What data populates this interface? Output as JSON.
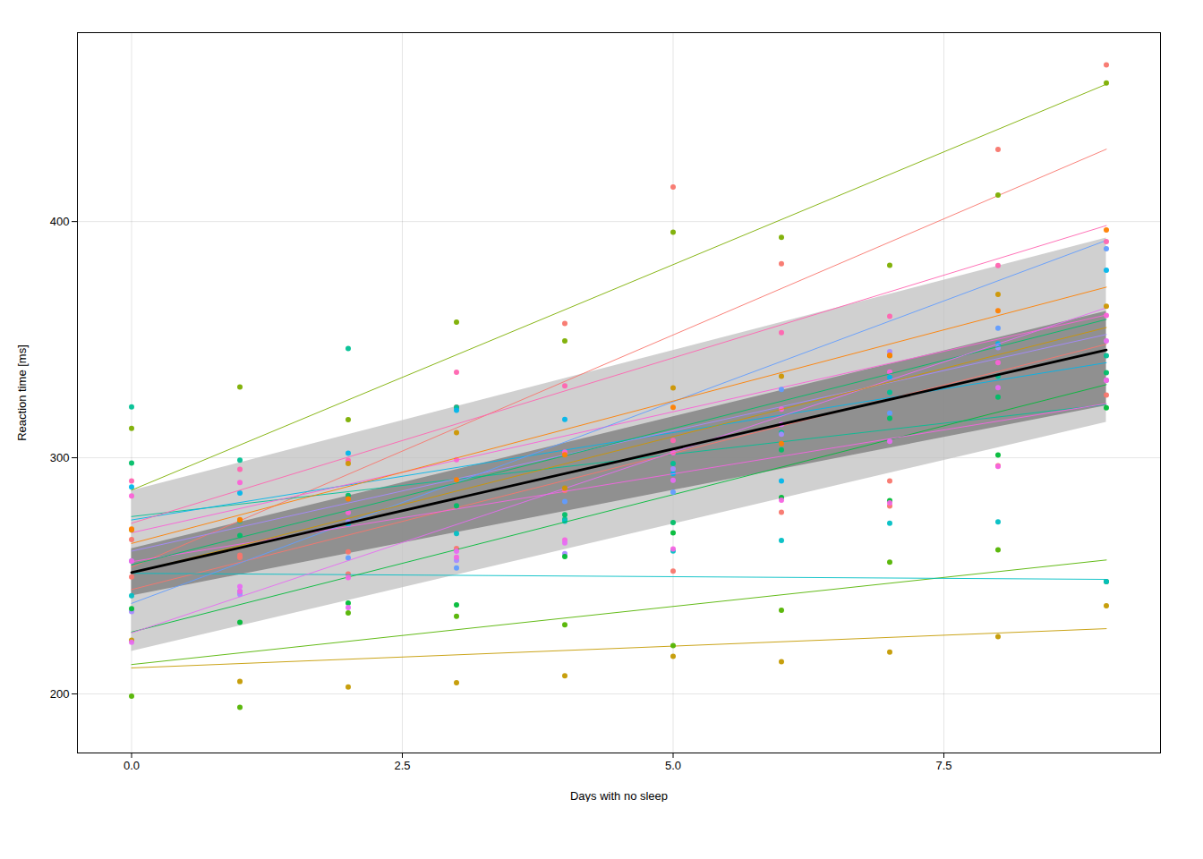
{
  "chart_data": {
    "type": "scatter",
    "xlabel": "Days with no sleep",
    "ylabel": "Reaction time [ms]",
    "xlim": [
      -0.5,
      9.5
    ],
    "ylim": [
      175,
      480
    ],
    "xticks": [
      {
        "value": 0,
        "label": "0.0"
      },
      2.5,
      {
        "value": 5,
        "label": "5.0"
      },
      7.5
    ],
    "yticks": [
      200,
      300,
      400
    ],
    "grid": true,
    "x": [
      0,
      1,
      2,
      3,
      4,
      5,
      6,
      7,
      8,
      9
    ],
    "series": [
      {
        "type": "area",
        "color": "#C0C0C0",
        "x": [
          0,
          9
        ],
        "lower": [
          218.0,
          315.0
        ],
        "upper": [
          286.0,
          393.0
        ]
      },
      {
        "type": "area",
        "color": "#808080",
        "x": [
          0,
          9
        ],
        "lower": [
          241.5,
          322.0
        ],
        "upper": [
          261.5,
          362.0
        ]
      },
      {
        "type": "line",
        "color": "#F8766D",
        "x": [
          0,
          9
        ],
        "values": [
          253.6637,
          430.6604
        ]
      },
      {
        "type": "scatter",
        "color": "#F8766D",
        "values": [
          249.56,
          258.7,
          250.8,
          321.44,
          356.85,
          414.69,
          382.2,
          290.15,
          430.59,
          466.35
        ]
      },
      {
        "type": "line",
        "color": "#C49A00",
        "x": [
          0,
          9
        ],
        "values": [
          211.0064,
          227.6321
        ]
      },
      {
        "type": "scatter",
        "color": "#C49A00",
        "values": [
          222.73,
          205.27,
          202.98,
          204.7,
          207.71,
          215.96,
          213.63,
          217.73,
          224.29,
          237.31
        ]
      },
      {
        "type": "line",
        "color": "#53B400",
        "x": [
          0,
          9
        ],
        "values": [
          212.4449,
          256.7078
        ]
      },
      {
        "type": "scatter",
        "color": "#53B400",
        "values": [
          199.05,
          194.33,
          234.32,
          232.84,
          229.31,
          220.46,
          235.44,
          255.75,
          261.01,
          247.55
        ]
      },
      {
        "type": "line",
        "color": "#00C094",
        "x": [
          0,
          9
        ],
        "values": [
          275.0952,
          322.5387
        ]
      },
      {
        "type": "scatter",
        "color": "#00C094",
        "values": [
          321.54,
          298.96,
          346.22,
          321.31,
          273.97,
          297.55,
          310.63,
          327.72,
          334.49,
          343.22
        ]
      },
      {
        "type": "line",
        "color": "#00B6EB",
        "x": [
          0,
          9
        ],
        "values": [
          273.6653,
          340.2428
        ]
      },
      {
        "type": "scatter",
        "color": "#00B6EB",
        "values": [
          287.6,
          285.05,
          301.97,
          320.1,
          316.27,
          293.32,
          290.15,
          334.04,
          348.27,
          379.45
        ]
      },
      {
        "type": "line",
        "color": "#A58AFF",
        "x": [
          0,
          9
        ],
        "values": [
          260.4447,
          352.2033
        ]
      },
      {
        "type": "scatter",
        "color": "#A58AFF",
        "values": [
          234.86,
          242.2,
          272.89,
          256.6,
          259.43,
          295.27,
          309.94,
          344.97,
          346.61,
          332.8
        ]
      },
      {
        "type": "line",
        "color": "#FB61D7",
        "x": [
          0,
          9
        ],
        "values": [
          268.2418,
          360.4504
        ]
      },
      {
        "type": "scatter",
        "color": "#FB61D7",
        "values": [
          283.83,
          289.52,
          276.78,
          299.2,
          302.41,
          302.11,
          320.61,
          336.31,
          340.3,
          360.24
        ]
      },
      {
        "type": "line",
        "color": "#F8766D",
        "x": [
          0,
          9
        ],
        "values": [
          244.1847,
          348.0708
        ]
      },
      {
        "type": "scatter",
        "color": "#F8766D",
        "values": [
          265.36,
          257.8,
          260.2,
          261.58,
          286.11,
          252.01,
          276.9,
          279.6,
          296.64,
          326.55
        ]
      },
      {
        "type": "line",
        "color": "#00BFC4",
        "x": [
          0,
          9
        ],
        "values": [
          251.0714,
          248.5037
        ]
      },
      {
        "type": "scatter",
        "color": "#00BFC4",
        "values": [
          241.6,
          273.09,
          271.78,
          267.95,
          273.1,
          260.56,
          264.94,
          272.29,
          272.89,
          247.53
        ]
      },
      {
        "type": "line",
        "color": "#7CAE00",
        "x": [
          0,
          9
        ],
        "values": [
          286.2956,
          458.1596
        ]
      },
      {
        "type": "scatter",
        "color": "#7CAE00",
        "values": [
          312.45,
          329.96,
          316.14,
          357.44,
          349.46,
          395.55,
          393.35,
          381.48,
          411.23,
          458.68
        ]
      },
      {
        "type": "line",
        "color": "#00BA38",
        "x": [
          0,
          9
        ],
        "values": [
          226.1949,
          330.9603
        ]
      },
      {
        "type": "scatter",
        "color": "#00BA38",
        "values": [
          236.07,
          230.32,
          238.45,
          237.68,
          258.15,
          268.2,
          283.18,
          281.84,
          301.17,
          321.14
        ]
      },
      {
        "type": "line",
        "color": "#619CFF",
        "x": [
          0,
          9
        ],
        "values": [
          238.3308,
          392.022
        ]
      },
      {
        "type": "scatter",
        "color": "#619CFF",
        "values": [
          256.23,
          243.43,
          257.56,
          253.37,
          281.46,
          285.45,
          328.89,
          318.86,
          354.83,
          388.53
        ]
      },
      {
        "type": "line",
        "color": "#F564E3",
        "x": [
          0,
          9
        ],
        "values": [
          255.983,
          322.9412
        ]
      },
      {
        "type": "scatter",
        "color": "#F564E3",
        "values": [
          256.24,
          243.4,
          249.22,
          257.91,
          265.22,
          261.35,
          281.99,
          280.9,
          296.38,
          332.76
        ]
      },
      {
        "type": "line",
        "color": "#FF64B0",
        "x": [
          0,
          9
        ],
        "values": [
          272.2688,
          398.312
        ]
      },
      {
        "type": "scatter",
        "color": "#FF64B0",
        "values": [
          290.16,
          295.15,
          298.93,
          336.26,
          330.44,
          307.34,
          353.02,
          359.89,
          381.4,
          391.51
        ]
      },
      {
        "type": "line",
        "color": "#00BE67",
        "x": [
          0,
          9
        ],
        "values": [
          254.6767,
          358.5628
        ]
      },
      {
        "type": "scatter",
        "color": "#00BE67",
        "values": [
          297.8,
          267.05,
          283.98,
          279.68,
          275.88,
          272.56,
          303.3,
          316.74,
          325.71,
          335.99
        ]
      },
      {
        "type": "line",
        "color": "#E76BF3",
        "x": [
          0,
          9
        ],
        "values": [
          225.8346,
          363.5112
        ]
      },
      {
        "type": "scatter",
        "color": "#E76BF3",
        "values": [
          221.84,
          245.43,
          236.61,
          260.44,
          263.97,
          290.46,
          314.19,
          306.98,
          329.64,
          349.47
        ]
      },
      {
        "type": "line",
        "color": "#CD9600",
        "x": [
          0,
          9
        ],
        "values": [
          251.2486,
          355.1347
        ]
      },
      {
        "type": "scatter",
        "color": "#CD9600",
        "values": [
          269.41,
          273.47,
          297.6,
          310.63,
          287.17,
          329.61,
          334.48,
          343.22,
          369.14,
          364.12
        ]
      },
      {
        "type": "line",
        "color": "#FF7F00",
        "x": [
          0,
          9
        ],
        "values": [
          263.7197,
          372.2462
        ]
      },
      {
        "type": "scatter",
        "color": "#FF7F00",
        "values": [
          269.77,
          273.78,
          282.62,
          290.63,
          301.22,
          321.31,
          305.96,
          343.37,
          362.27,
          396.46
        ]
      },
      {
        "type": "line",
        "color": "#000000",
        "x": [
          0,
          9
        ],
        "values": [
          251.405,
          345.608
        ]
      }
    ]
  }
}
